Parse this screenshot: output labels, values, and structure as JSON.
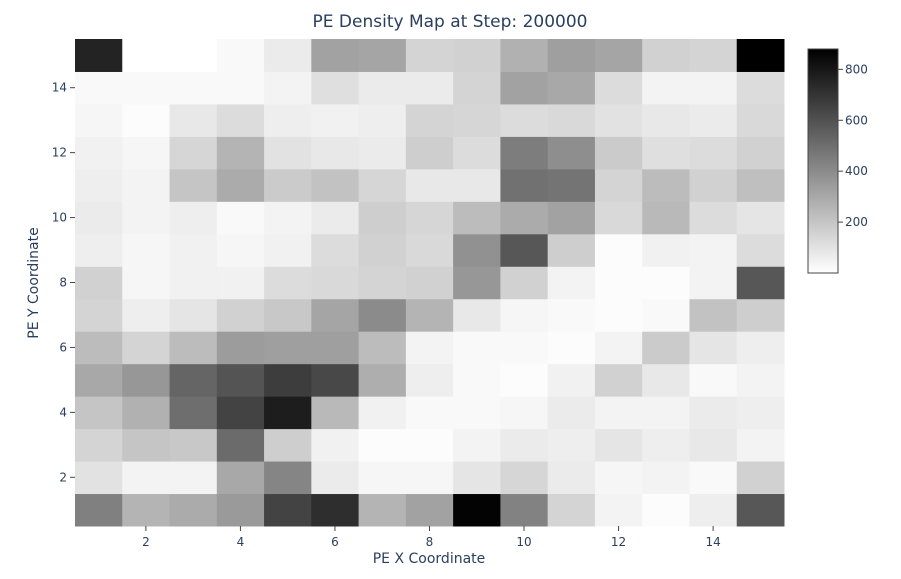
{
  "chart_data": {
    "type": "heatmap",
    "title": "PE Density Map at Step: 200000",
    "xlabel": "PE X Coordinate",
    "ylabel": "PE Y Coordinate",
    "x": [
      1,
      2,
      3,
      4,
      5,
      6,
      7,
      8,
      9,
      10,
      11,
      12,
      13,
      14,
      15
    ],
    "y": [
      1,
      2,
      3,
      4,
      5,
      6,
      7,
      8,
      9,
      10,
      11,
      12,
      13,
      14,
      15
    ],
    "xlim": [
      0.5,
      15.5
    ],
    "ylim": [
      0.5,
      15.5
    ],
    "x_ticks": [
      2,
      4,
      6,
      8,
      10,
      12,
      14
    ],
    "y_ticks": [
      2,
      4,
      6,
      8,
      10,
      12,
      14
    ],
    "colorscale": [
      "#ffffff",
      "#000000"
    ],
    "zlim": [
      0,
      880
    ],
    "colorbar_ticks": [
      200,
      400,
      600,
      800
    ],
    "grid": false,
    "colorbar_position": "right",
    "z": [
      [
        440,
        260,
        290,
        350,
        650,
        720,
        260,
        320,
        870,
        430,
        150,
        40,
        10,
        60,
        580
      ],
      [
        100,
        40,
        40,
        300,
        420,
        70,
        30,
        30,
        90,
        140,
        70,
        30,
        40,
        20,
        160
      ],
      [
        150,
        200,
        190,
        510,
        170,
        50,
        10,
        10,
        40,
        70,
        60,
        90,
        60,
        80,
        40
      ],
      [
        200,
        270,
        500,
        650,
        780,
        240,
        50,
        20,
        20,
        30,
        70,
        40,
        40,
        70,
        60
      ],
      [
        300,
        360,
        530,
        590,
        670,
        630,
        280,
        60,
        20,
        10,
        50,
        160,
        80,
        20,
        40
      ],
      [
        230,
        150,
        230,
        340,
        330,
        330,
        230,
        40,
        20,
        20,
        10,
        40,
        180,
        90,
        60
      ],
      [
        150,
        60,
        90,
        160,
        190,
        310,
        400,
        260,
        80,
        30,
        20,
        10,
        20,
        210,
        170
      ],
      [
        160,
        30,
        50,
        50,
        120,
        130,
        150,
        160,
        360,
        160,
        40,
        10,
        10,
        40,
        580
      ],
      [
        60,
        30,
        50,
        30,
        50,
        120,
        160,
        130,
        380,
        580,
        170,
        10,
        50,
        40,
        120
      ],
      [
        70,
        40,
        60,
        20,
        40,
        70,
        170,
        140,
        230,
        290,
        320,
        130,
        240,
        120,
        90
      ],
      [
        60,
        40,
        200,
        290,
        180,
        210,
        140,
        80,
        80,
        490,
        480,
        150,
        230,
        160,
        220
      ],
      [
        50,
        30,
        140,
        260,
        100,
        80,
        70,
        170,
        120,
        450,
        390,
        180,
        110,
        120,
        160
      ],
      [
        30,
        10,
        80,
        120,
        60,
        50,
        60,
        150,
        140,
        120,
        130,
        100,
        80,
        70,
        130
      ],
      [
        20,
        20,
        20,
        20,
        40,
        110,
        70,
        70,
        150,
        320,
        300,
        120,
        40,
        40,
        120
      ],
      [
        760,
        0,
        0,
        20,
        70,
        320,
        310,
        150,
        160,
        270,
        330,
        310,
        160,
        150,
        880
      ]
    ]
  }
}
